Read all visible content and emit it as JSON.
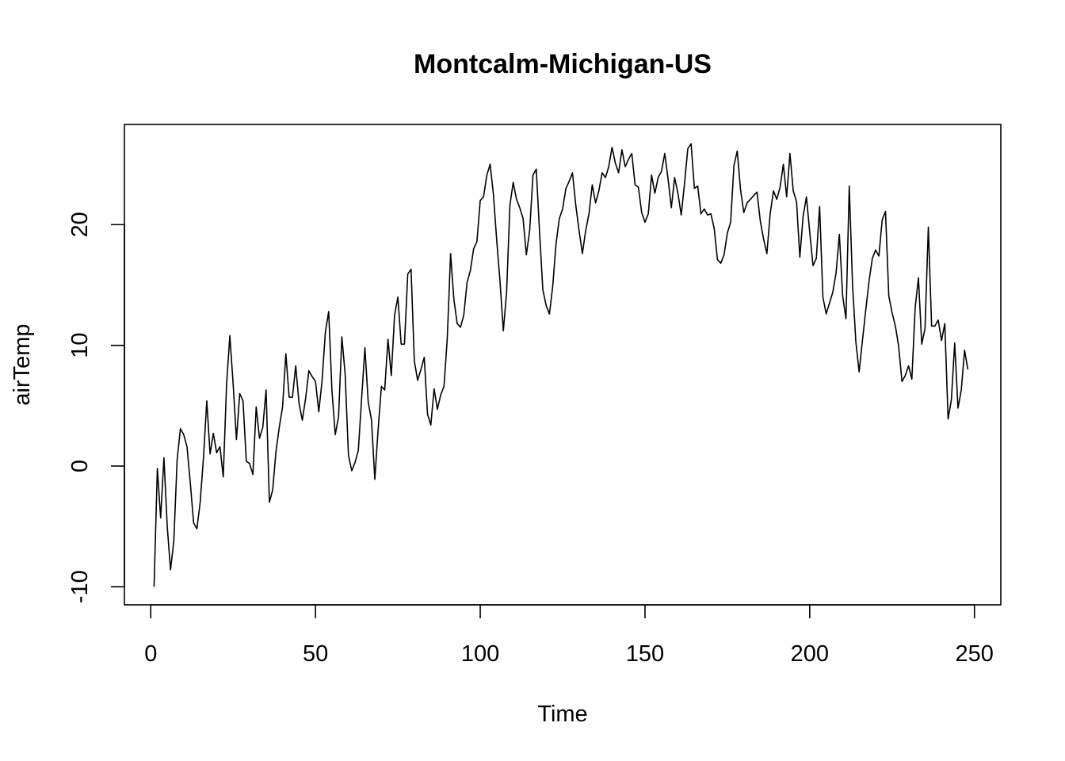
{
  "chart_data": {
    "type": "line",
    "title": "Montcalm-Michigan-US",
    "xlabel": "Time",
    "ylabel": "airTemp",
    "xlim": [
      -8,
      258
    ],
    "ylim": [
      -11.5,
      28.3
    ],
    "xticks": [
      0,
      50,
      100,
      150,
      200,
      250
    ],
    "xtick_labels": [
      "0",
      "50",
      "100",
      "150",
      "200",
      "250"
    ],
    "yticks": [
      -10,
      0,
      10,
      20
    ],
    "ytick_labels": [
      "-10",
      "0",
      "10",
      "20"
    ],
    "grid": false,
    "line_color": "#000000",
    "series": [
      {
        "values": [
          -10.0,
          -0.2,
          -4.3,
          0.7,
          -5.0,
          -8.6,
          -6.2,
          0.5,
          3.1,
          2.6,
          1.6,
          -1.4,
          -4.7,
          -5.2,
          -3.0,
          0.7,
          5.4,
          1.0,
          2.7,
          1.1,
          1.6,
          -0.9,
          6.7,
          10.8,
          6.8,
          2.2,
          6.0,
          5.4,
          0.4,
          0.2,
          -0.7,
          4.9,
          2.3,
          3.2,
          6.3,
          -3.0,
          -2.0,
          1.2,
          3.2,
          4.9,
          9.3,
          5.7,
          5.7,
          8.3,
          5.2,
          3.8,
          5.6,
          7.9,
          7.4,
          7.0,
          4.5,
          7.1,
          11.1,
          12.8,
          6.2,
          2.6,
          4.1,
          10.7,
          7.6,
          0.9,
          -0.4,
          0.3,
          1.3,
          5.6,
          9.8,
          5.3,
          3.8,
          -1.1,
          3.0,
          6.6,
          6.3,
          10.5,
          7.5,
          12.5,
          14.0,
          10.1,
          10.1,
          15.9,
          16.3,
          8.7,
          7.1,
          8.0,
          9.0,
          4.3,
          3.4,
          6.4,
          4.7,
          5.9,
          6.6,
          10.6,
          17.6,
          13.8,
          11.8,
          11.5,
          12.5,
          15.2,
          16.2,
          18.0,
          18.6,
          22.0,
          22.3,
          24.1,
          25.0,
          22.5,
          18.7,
          15.3,
          11.2,
          14.4,
          21.6,
          23.5,
          22.1,
          21.4,
          20.5,
          17.5,
          19.5,
          24.1,
          24.6,
          19.4,
          14.6,
          13.3,
          12.6,
          14.9,
          18.4,
          20.5,
          21.3,
          23.0,
          23.6,
          24.3,
          21.6,
          19.5,
          17.6,
          19.5,
          20.9,
          23.3,
          21.8,
          22.8,
          24.3,
          23.9,
          24.8,
          26.4,
          25.1,
          24.3,
          26.2,
          24.8,
          25.4,
          25.9,
          23.3,
          23.1,
          21.0,
          20.2,
          20.9,
          24.1,
          22.6,
          23.9,
          24.4,
          25.9,
          23.8,
          21.4,
          23.9,
          22.6,
          20.8,
          23.4,
          26.3,
          26.7,
          23.0,
          23.2,
          20.9,
          21.3,
          20.8,
          20.9,
          19.7,
          17.1,
          16.8,
          17.5,
          19.3,
          20.2,
          24.9,
          26.1,
          22.9,
          21.0,
          21.8,
          22.1,
          22.4,
          22.7,
          20.3,
          18.8,
          17.6,
          20.9,
          22.8,
          22.1,
          23.1,
          25.0,
          22.3,
          25.9,
          22.8,
          21.9,
          17.3,
          20.7,
          22.3,
          19.4,
          16.6,
          17.2,
          21.5,
          14.0,
          12.6,
          13.5,
          14.4,
          16.0,
          19.2,
          14.1,
          12.2,
          23.2,
          15.0,
          10.3,
          7.8,
          10.4,
          12.9,
          15.3,
          17.2,
          17.9,
          17.4,
          20.4,
          21.1,
          14.1,
          12.7,
          11.6,
          9.9,
          7.0,
          7.5,
          8.3,
          7.2,
          13.1,
          15.6,
          10.1,
          11.4,
          19.8,
          11.6,
          11.6,
          12.1,
          10.4,
          11.8,
          3.9,
          5.5,
          10.2,
          4.8,
          6.3,
          9.6,
          8.0
        ]
      }
    ]
  }
}
